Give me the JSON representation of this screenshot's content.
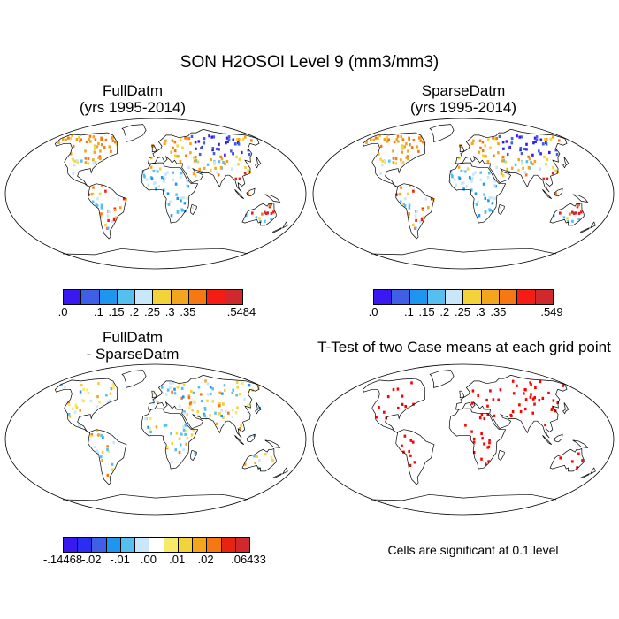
{
  "figure": {
    "title": "SON H2OSOI Level 9 (mm3/mm3)",
    "panels": [
      {
        "id": "tl",
        "title_line1": "FullDatm",
        "title_line2": "(yrs 1995-2014)"
      },
      {
        "id": "tr",
        "title_line1": "SparseDatm",
        "title_line2": "(yrs 1995-2014)"
      },
      {
        "id": "bl",
        "title_line1": "FullDatm",
        "title_line2": "- SparseDatm"
      },
      {
        "id": "br",
        "title_line1": "T-Test of two Case means at each grid point",
        "title_line2": ""
      }
    ],
    "significance_note": "Cells are significant at 0.1 level"
  },
  "colorbars": {
    "tl": {
      "colors": [
        "#3a18f2",
        "#3f5fe6",
        "#1e96f0",
        "#55c0f0",
        "#c9e7fb",
        "#f2d33a",
        "#f3a51f",
        "#f67813",
        "#f51c14",
        "#d0292d"
      ],
      "labels": [
        ".0",
        "",
        ".1",
        ".15",
        ".2",
        ".25",
        ".3",
        ".35",
        "",
        ".5484"
      ]
    },
    "tr": {
      "colors": [
        "#3a18f2",
        "#3f5fe6",
        "#1e96f0",
        "#55c0f0",
        "#c9e7fb",
        "#f2d33a",
        "#f3a51f",
        "#f67813",
        "#f51c14",
        "#d0292d"
      ],
      "labels": [
        ".0",
        "",
        ".1",
        ".15",
        ".2",
        ".25",
        ".3",
        ".35",
        "",
        ".549"
      ]
    },
    "bl": {
      "colors": [
        "#3a18f2",
        "#2a2ef0",
        "#3f5fe6",
        "#1e96f0",
        "#55c0f0",
        "#c9e7fb",
        "#ffffff",
        "#f7ea66",
        "#f2d33a",
        "#f3a51f",
        "#f67813",
        "#e8230f",
        "#d0292d"
      ],
      "labels": [
        "-.14468",
        "",
        "-.02",
        "",
        "-.01",
        "",
        ".00",
        "",
        ".01",
        "",
        ".02",
        "",
        ".06433"
      ]
    }
  },
  "colors": {
    "significant": "#ff0000",
    "coast": "#000000"
  }
}
